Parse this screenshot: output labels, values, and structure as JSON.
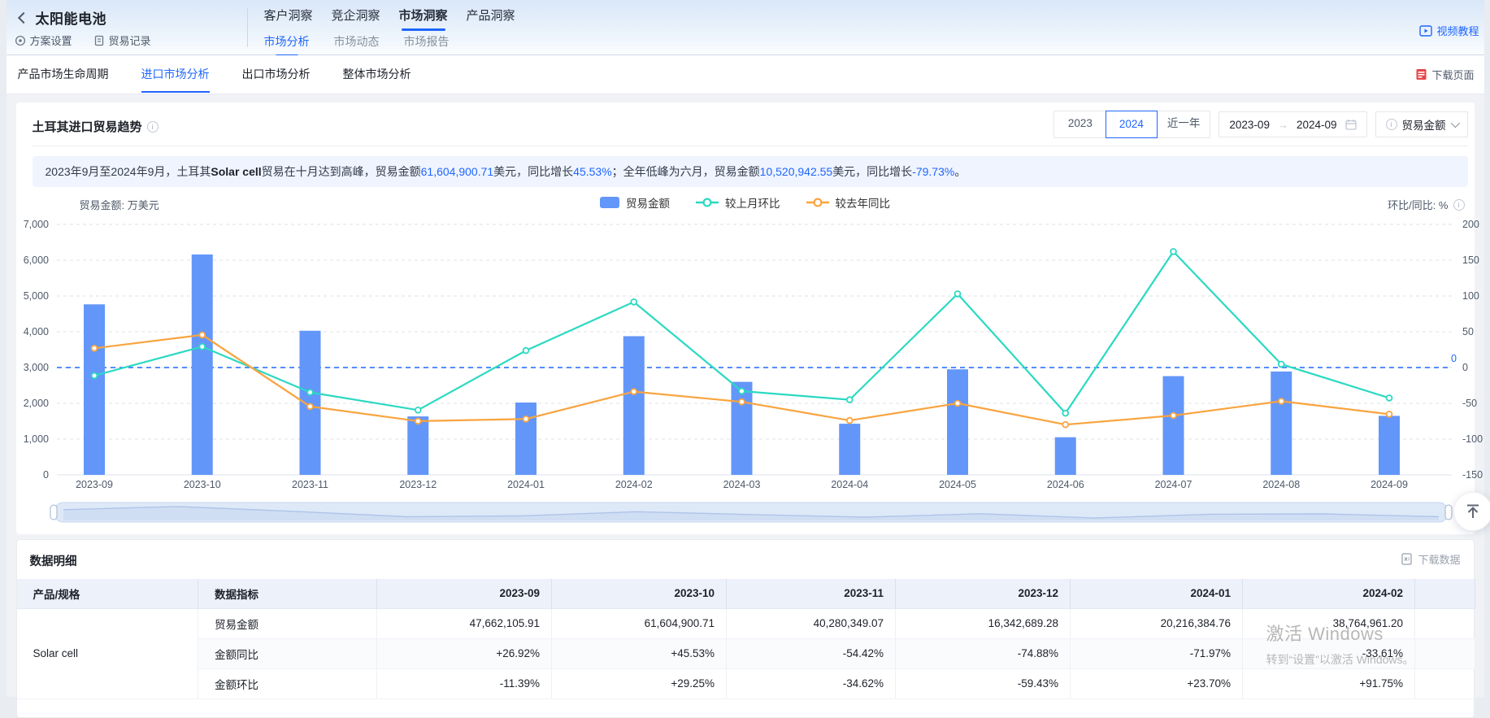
{
  "app": {
    "title": "太阳能电池"
  },
  "header": {
    "actions": [
      {
        "label": "方案设置",
        "icon": "target-icon"
      },
      {
        "label": "贸易记录",
        "icon": "document-icon"
      }
    ],
    "tabs": [
      {
        "label": "客户洞察",
        "active": false
      },
      {
        "label": "竞企洞察",
        "active": false
      },
      {
        "label": "市场洞察",
        "active": true
      },
      {
        "label": "产品洞察",
        "active": false
      }
    ],
    "subtabs": [
      {
        "label": "市场分析",
        "active": true
      },
      {
        "label": "市场动态",
        "active": false
      },
      {
        "label": "市场报告",
        "active": false
      }
    ],
    "video_tutorial": "视频教程"
  },
  "nav": {
    "items": [
      {
        "label": "产品市场生命周期",
        "active": false
      },
      {
        "label": "进口市场分析",
        "active": true
      },
      {
        "label": "出口市场分析",
        "active": false
      },
      {
        "label": "整体市场分析",
        "active": false
      }
    ],
    "download_page": "下载页面"
  },
  "panel": {
    "title": "土耳其进口贸易趋势",
    "year_buttons": [
      {
        "label": "2023",
        "active": false
      },
      {
        "label": "2024",
        "active": true
      },
      {
        "label": "近一年",
        "active": false
      }
    ],
    "date_from": "2023-09",
    "date_to": "2024-09",
    "metric_select": "贸易金额"
  },
  "summary": {
    "segments": [
      {
        "t": "2023年9月至2024年9月，土耳其",
        "c": "plain"
      },
      {
        "t": "Solar cell",
        "c": "bold"
      },
      {
        "t": "贸易在十月达到高峰，贸易金额",
        "c": "plain"
      },
      {
        "t": "61,604,900.71",
        "c": "blue"
      },
      {
        "t": "美元，同比增长",
        "c": "plain"
      },
      {
        "t": "45.53%",
        "c": "blue"
      },
      {
        "t": "；全年低峰为六月，贸易金额",
        "c": "plain"
      },
      {
        "t": "10,520,942.55",
        "c": "blue"
      },
      {
        "t": "美元，同比增长",
        "c": "plain"
      },
      {
        "t": "-79.73%",
        "c": "blue"
      },
      {
        "t": "。",
        "c": "plain"
      }
    ]
  },
  "chart_data": {
    "type": "bar+line",
    "title": "土耳其进口贸易趋势",
    "categories": [
      "2023-09",
      "2023-10",
      "2023-11",
      "2023-12",
      "2024-01",
      "2024-02",
      "2024-03",
      "2024-04",
      "2024-05",
      "2024-06",
      "2024-07",
      "2024-08",
      "2024-09"
    ],
    "series": [
      {
        "name": "贸易金额",
        "type": "bar",
        "axis": "left",
        "unit": "万美元",
        "color": "#6396F9",
        "values": [
          4766.21,
          6160.49,
          4028.03,
          1634.27,
          2021.64,
          3876.5,
          2600,
          1430,
          2950,
          1052.09,
          2760,
          2890,
          1650
        ]
      },
      {
        "name": "较上月环比",
        "type": "line",
        "axis": "right",
        "unit": "%",
        "color": "#2BD9C2",
        "values": [
          -11.39,
          29.25,
          -34.62,
          -59.43,
          23.7,
          91.75,
          -32.9,
          -45,
          103,
          -63.7,
          162,
          4.7,
          -42.5
        ]
      },
      {
        "name": "较去年同比",
        "type": "line",
        "axis": "right",
        "unit": "%",
        "color": "#F9A43F",
        "values": [
          26.92,
          45.53,
          -54.42,
          -74.88,
          -71.97,
          -33.61,
          -48,
          -74,
          -50,
          -79.73,
          -67,
          -47,
          -65.2
        ]
      }
    ],
    "left_axis": {
      "label": "贸易金额: 万美元",
      "min": 0,
      "max": 7000,
      "ticks": [
        "7,000",
        "6,000",
        "5,000",
        "4,000",
        "3,000",
        "2,000",
        "1,000",
        "0"
      ]
    },
    "right_axis": {
      "label": "环比/同比: %",
      "min": -150,
      "max": 200,
      "ticks": [
        "200",
        "150",
        "100",
        "50",
        "0",
        "-50",
        "-100",
        "-150"
      ]
    },
    "markline": {
      "axis": "right",
      "value": 0,
      "label": "0"
    },
    "legend_position": "top-center",
    "grid": true
  },
  "table": {
    "section_title": "数据明细",
    "download_label": "下载数据",
    "columns": [
      "产品/规格",
      "数据指标",
      "2023-09",
      "2023-10",
      "2023-11",
      "2023-12",
      "2024-01",
      "2024-02"
    ],
    "product": "Solar cell",
    "rows": [
      {
        "metric": "贸易金额",
        "values": [
          "47,662,105.91",
          "61,604,900.71",
          "40,280,349.07",
          "16,342,689.28",
          "20,216,384.76",
          "38,764,961.20"
        ]
      },
      {
        "metric": "金额同比",
        "values": [
          "+26.92%",
          "+45.53%",
          "-54.42%",
          "-74.88%",
          "-71.97%",
          "-33.61%"
        ]
      },
      {
        "metric": "金额环比",
        "values": [
          "-11.39%",
          "+29.25%",
          "-34.62%",
          "-59.43%",
          "+23.70%",
          "+91.75%"
        ]
      }
    ]
  },
  "watermark": {
    "line1": "激活 Windows",
    "line2": "转到“设置”以激活 Windows。"
  },
  "colors": {
    "accent": "#1F66FF",
    "bar": "#6396F9",
    "line_mom": "#2BD9C2",
    "line_yoy": "#F9A43F",
    "positive": "#F53F3F",
    "negative": "#12B76A",
    "axis_text": "#4E5969",
    "grid_line": "#DDE0E6"
  }
}
